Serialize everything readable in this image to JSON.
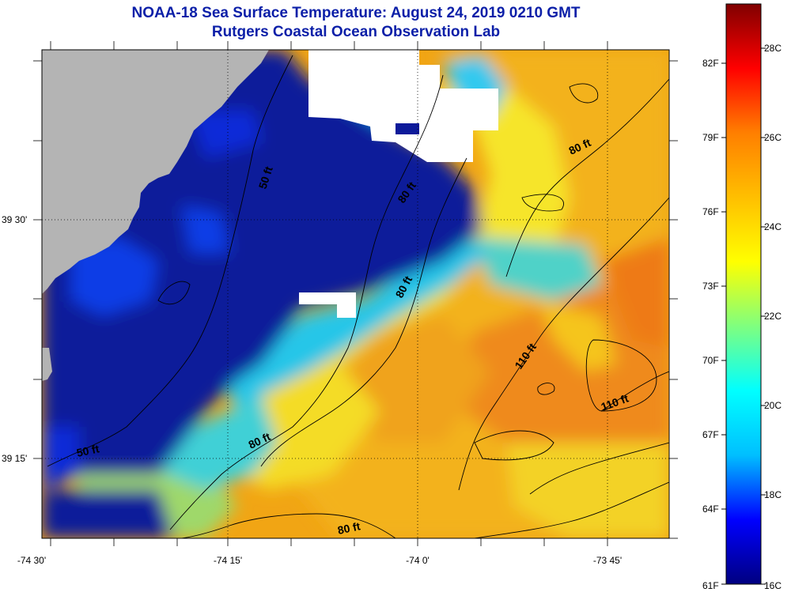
{
  "header": {
    "title": "NOAA-18 Sea Surface Temperature:  August 24, 2019 0210 GMT",
    "subtitle": "Rutgers Coastal Ocean Observation Lab"
  },
  "axes": {
    "lon_ticks": [
      "-74 30'",
      "-74 15'",
      "-74 0'",
      "-73 45'"
    ],
    "lat_ticks": [
      "39 30'",
      "39 15'"
    ]
  },
  "contours": [
    {
      "label": "50 ft"
    },
    {
      "label": "50 ft"
    },
    {
      "label": "80 ft"
    },
    {
      "label": "80 ft"
    },
    {
      "label": "80 ft"
    },
    {
      "label": "80 ft"
    },
    {
      "label": "80 ft"
    },
    {
      "label": "110 ft"
    },
    {
      "label": "110 ft"
    }
  ],
  "colorbar": {
    "fahrenheit": [
      "82F",
      "79F",
      "76F",
      "73F",
      "70F",
      "67F",
      "64F",
      "61F"
    ],
    "celsius": [
      "28C",
      "26C",
      "24C",
      "22C",
      "20C",
      "18C",
      "16C"
    ],
    "range_c": [
      16,
      29
    ],
    "gradient": [
      "#000080",
      "#0000ff",
      "#00bfff",
      "#00ffff",
      "#7fff7f",
      "#ffff00",
      "#ffbf00",
      "#ff7f00",
      "#ff0000",
      "#800000"
    ]
  },
  "colors": {
    "land": "#b4b4b4",
    "cloud": "#ffffff",
    "title": "#0b1fa8"
  }
}
